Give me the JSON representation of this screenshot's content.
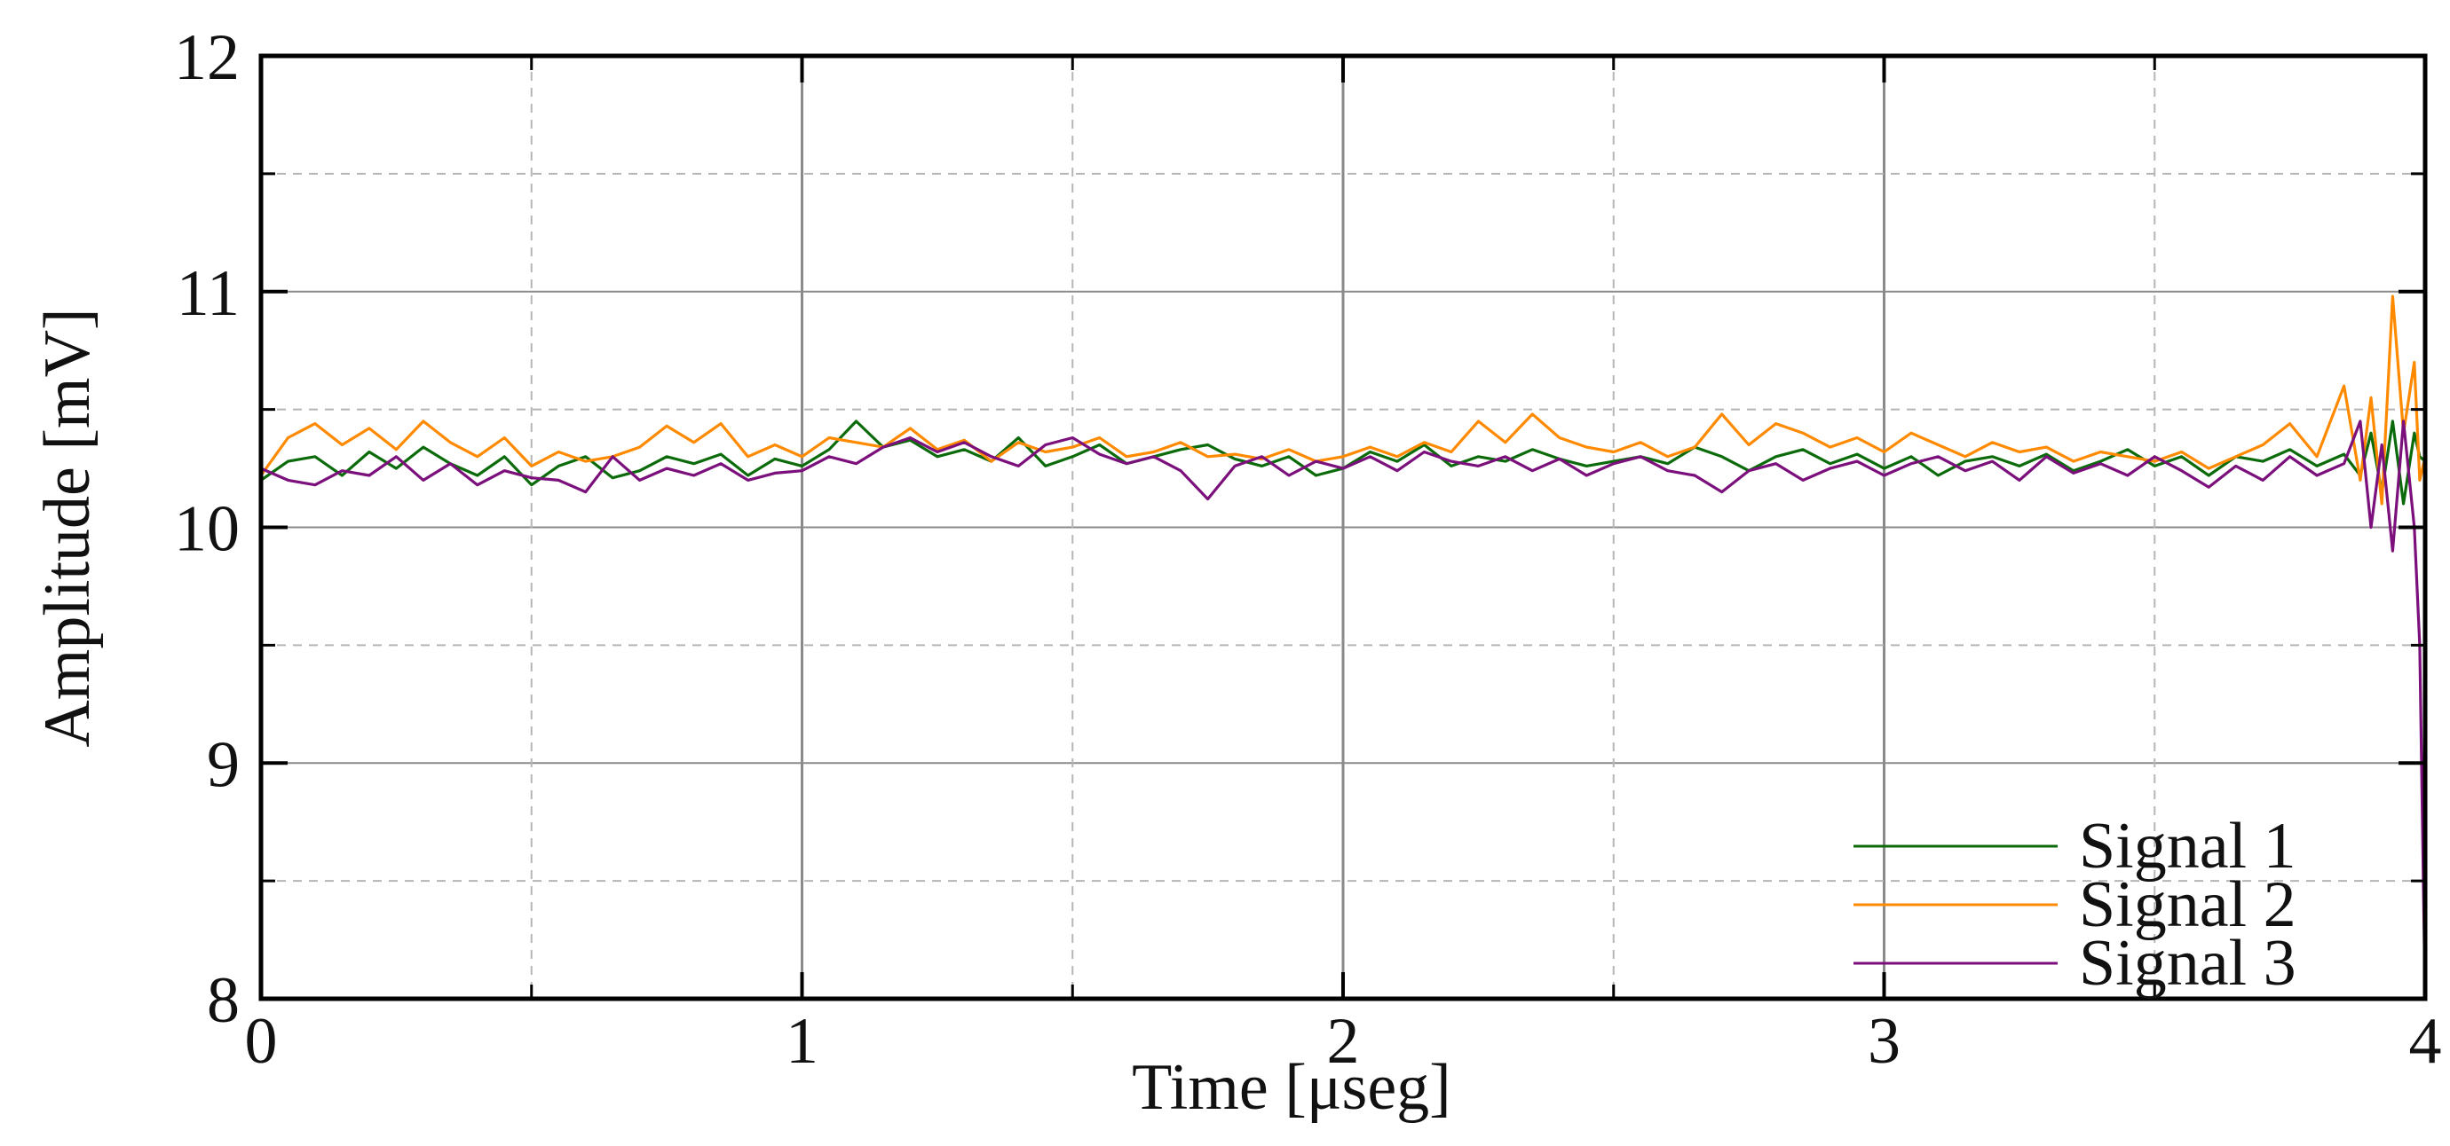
{
  "chart_data": {
    "type": "line",
    "title": "",
    "xlabel": "Time [μseg]",
    "ylabel": "Amplitude [mV]",
    "xlim": [
      0,
      4
    ],
    "ylim": [
      8,
      12
    ],
    "xticks": [
      0,
      1,
      2,
      3,
      4
    ],
    "yticks": [
      8,
      9,
      10,
      11,
      12
    ],
    "xtick_labels": [
      "0",
      "1",
      "2",
      "3",
      "4"
    ],
    "ytick_labels": [
      "8",
      "9",
      "10",
      "11",
      "12"
    ],
    "grid": true,
    "legend_position": "bottom-right",
    "x": [
      0,
      0.05,
      0.1,
      0.15,
      0.2,
      0.25,
      0.3,
      0.35,
      0.4,
      0.45,
      0.5,
      0.55,
      0.6,
      0.65,
      0.7,
      0.75,
      0.8,
      0.85,
      0.9,
      0.95,
      1.0,
      1.05,
      1.1,
      1.15,
      1.2,
      1.25,
      1.3,
      1.35,
      1.4,
      1.45,
      1.5,
      1.55,
      1.6,
      1.65,
      1.7,
      1.75,
      1.8,
      1.85,
      1.9,
      1.95,
      2.0,
      2.05,
      2.1,
      2.15,
      2.2,
      2.25,
      2.3,
      2.35,
      2.4,
      2.45,
      2.5,
      2.55,
      2.6,
      2.65,
      2.7,
      2.75,
      2.8,
      2.85,
      2.9,
      2.95,
      3.0,
      3.05,
      3.1,
      3.15,
      3.2,
      3.25,
      3.3,
      3.35,
      3.4,
      3.45,
      3.5,
      3.55,
      3.6,
      3.65,
      3.7,
      3.75,
      3.8,
      3.85,
      3.88,
      3.9,
      3.92,
      3.94,
      3.96,
      3.98,
      3.99,
      4.0
    ],
    "series": [
      {
        "name": "Signal 1",
        "color": "#0b6b0b",
        "values": [
          10.2,
          10.28,
          10.3,
          10.22,
          10.32,
          10.25,
          10.34,
          10.27,
          10.22,
          10.3,
          10.18,
          10.26,
          10.3,
          10.21,
          10.24,
          10.3,
          10.27,
          10.31,
          10.22,
          10.29,
          10.26,
          10.33,
          10.45,
          10.34,
          10.37,
          10.3,
          10.33,
          10.28,
          10.38,
          10.26,
          10.3,
          10.35,
          10.27,
          10.3,
          10.33,
          10.35,
          10.29,
          10.26,
          10.3,
          10.22,
          10.25,
          10.32,
          10.28,
          10.35,
          10.26,
          10.3,
          10.28,
          10.33,
          10.29,
          10.26,
          10.28,
          10.3,
          10.27,
          10.34,
          10.3,
          10.24,
          10.3,
          10.33,
          10.27,
          10.31,
          10.25,
          10.3,
          10.22,
          10.28,
          10.3,
          10.26,
          10.31,
          10.24,
          10.28,
          10.33,
          10.26,
          10.3,
          10.22,
          10.3,
          10.28,
          10.33,
          10.26,
          10.31,
          10.22,
          10.4,
          10.15,
          10.45,
          10.1,
          10.4,
          10.3,
          10.28
        ]
      },
      {
        "name": "Signal 2",
        "color": "#ff8a00",
        "values": [
          10.22,
          10.38,
          10.44,
          10.35,
          10.42,
          10.33,
          10.45,
          10.36,
          10.3,
          10.38,
          10.26,
          10.32,
          10.28,
          10.3,
          10.34,
          10.43,
          10.36,
          10.44,
          10.3,
          10.35,
          10.3,
          10.38,
          10.36,
          10.34,
          10.42,
          10.33,
          10.37,
          10.28,
          10.36,
          10.32,
          10.34,
          10.38,
          10.3,
          10.32,
          10.36,
          10.3,
          10.31,
          10.29,
          10.33,
          10.28,
          10.3,
          10.34,
          10.3,
          10.36,
          10.32,
          10.45,
          10.36,
          10.48,
          10.38,
          10.34,
          10.32,
          10.36,
          10.3,
          10.34,
          10.48,
          10.35,
          10.44,
          10.4,
          10.34,
          10.38,
          10.32,
          10.4,
          10.35,
          10.3,
          10.36,
          10.32,
          10.34,
          10.28,
          10.32,
          10.3,
          10.28,
          10.32,
          10.25,
          10.3,
          10.35,
          10.44,
          10.3,
          10.6,
          10.2,
          10.55,
          10.1,
          10.98,
          10.4,
          10.7,
          10.2,
          10.3
        ]
      },
      {
        "name": "Signal 3",
        "color": "#7b0f7b",
        "values": [
          10.25,
          10.2,
          10.18,
          10.24,
          10.22,
          10.3,
          10.2,
          10.27,
          10.18,
          10.24,
          10.21,
          10.2,
          10.15,
          10.3,
          10.2,
          10.25,
          10.22,
          10.27,
          10.2,
          10.23,
          10.24,
          10.3,
          10.27,
          10.34,
          10.38,
          10.32,
          10.36,
          10.3,
          10.26,
          10.35,
          10.38,
          10.31,
          10.27,
          10.3,
          10.24,
          10.12,
          10.26,
          10.3,
          10.22,
          10.28,
          10.25,
          10.3,
          10.24,
          10.32,
          10.28,
          10.26,
          10.3,
          10.24,
          10.29,
          10.22,
          10.27,
          10.3,
          10.24,
          10.22,
          10.15,
          10.24,
          10.27,
          10.2,
          10.25,
          10.28,
          10.22,
          10.27,
          10.3,
          10.24,
          10.28,
          10.2,
          10.3,
          10.23,
          10.27,
          10.22,
          10.3,
          10.24,
          10.17,
          10.26,
          10.2,
          10.3,
          10.22,
          10.27,
          10.45,
          10.0,
          10.35,
          9.9,
          10.45,
          10.0,
          9.5,
          8.0
        ]
      }
    ]
  }
}
